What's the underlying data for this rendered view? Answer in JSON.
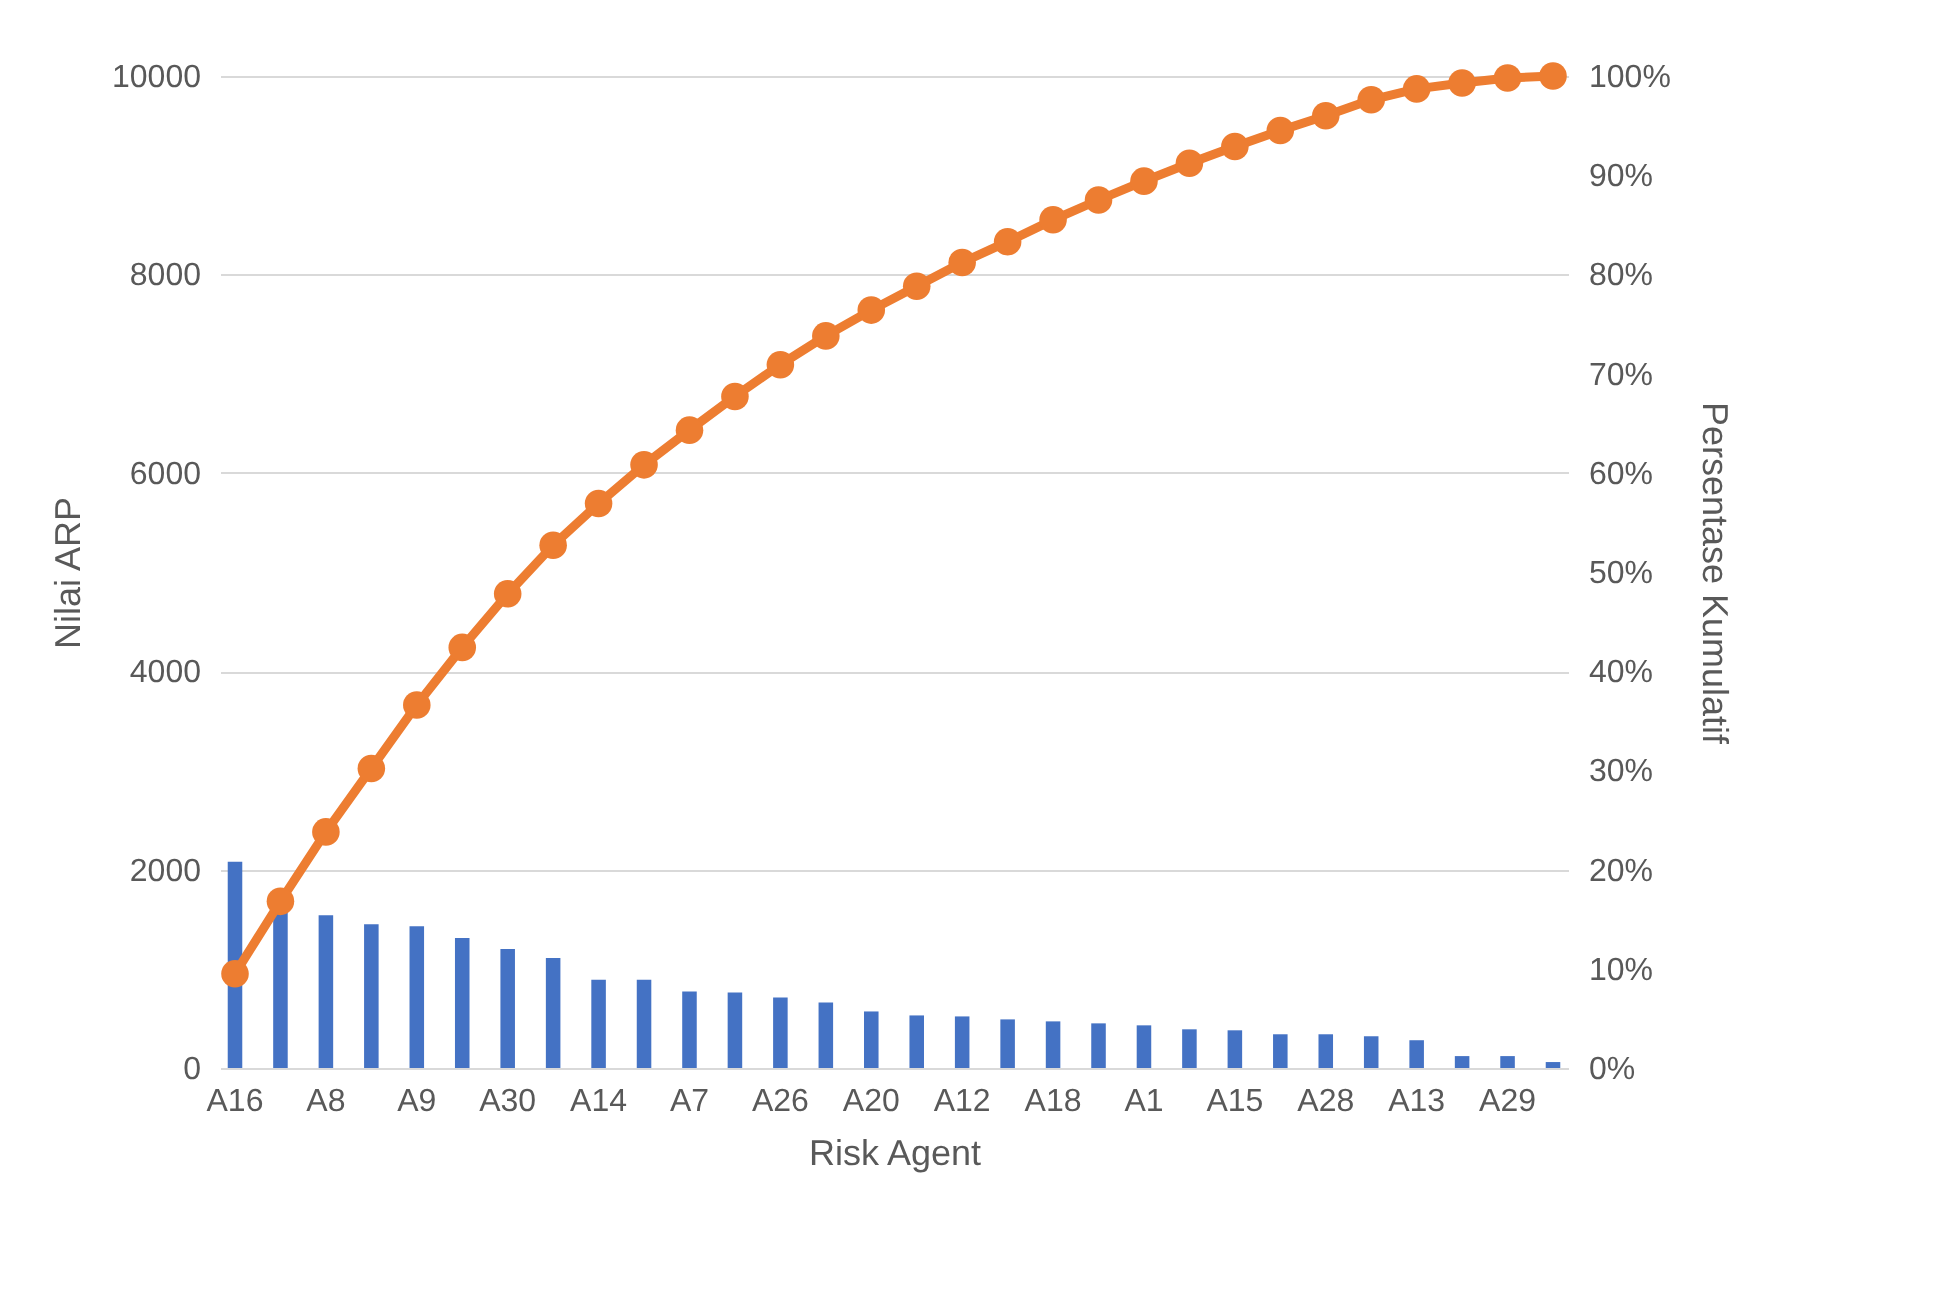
{
  "chart_data": {
    "type": "bar",
    "xlabel": "Risk Agent",
    "ylabel": "Nilai ARP",
    "y2label": "Persentase Kumulatif",
    "categories": [
      "A16",
      null,
      "A8",
      null,
      "A9",
      null,
      "A30",
      null,
      "A14",
      null,
      "A7",
      null,
      "A26",
      null,
      "A20",
      null,
      "A12",
      null,
      "A18",
      null,
      "A1",
      null,
      "A15",
      null,
      "A28",
      null,
      "A13",
      null,
      "A29",
      null
    ],
    "series": [
      {
        "color": "#4472c4",
        "values": [
          2080,
          1600,
          1540,
          1450,
          1430,
          1310,
          1200,
          1110,
          890,
          890,
          770,
          760,
          710,
          660,
          570,
          530,
          520,
          490,
          470,
          450,
          430,
          390,
          380,
          340,
          340,
          320,
          280,
          120,
          120,
          60
        ]
      },
      {
        "type": "line",
        "axis": "y2",
        "color": "#ed7d31",
        "marker": "circle",
        "values": [
          9.5,
          16.8,
          23.8,
          30.2,
          36.6,
          42.4,
          47.8,
          52.7,
          56.9,
          60.8,
          64.3,
          67.7,
          70.9,
          73.8,
          76.4,
          78.8,
          81.2,
          83.3,
          85.5,
          87.5,
          89.4,
          91.2,
          92.9,
          94.5,
          96.0,
          97.6,
          98.7,
          99.3,
          99.8,
          100
        ]
      }
    ],
    "ylim": [
      0,
      10000
    ],
    "yticks": [
      0,
      2000,
      4000,
      6000,
      8000,
      10000
    ],
    "y2lim": [
      0,
      100
    ],
    "y2ticks": [
      {
        "value": 0,
        "label": "0%"
      },
      {
        "value": 10,
        "label": "10%"
      },
      {
        "value": 20,
        "label": "20%"
      },
      {
        "value": 30,
        "label": "30%"
      },
      {
        "value": 40,
        "label": "40%"
      },
      {
        "value": 50,
        "label": "50%"
      },
      {
        "value": 60,
        "label": "60%"
      },
      {
        "value": 70,
        "label": "70%"
      },
      {
        "value": 80,
        "label": "80%"
      },
      {
        "value": 90,
        "label": "90%"
      },
      {
        "value": 100,
        "label": "100%"
      }
    ],
    "grid": "y"
  }
}
